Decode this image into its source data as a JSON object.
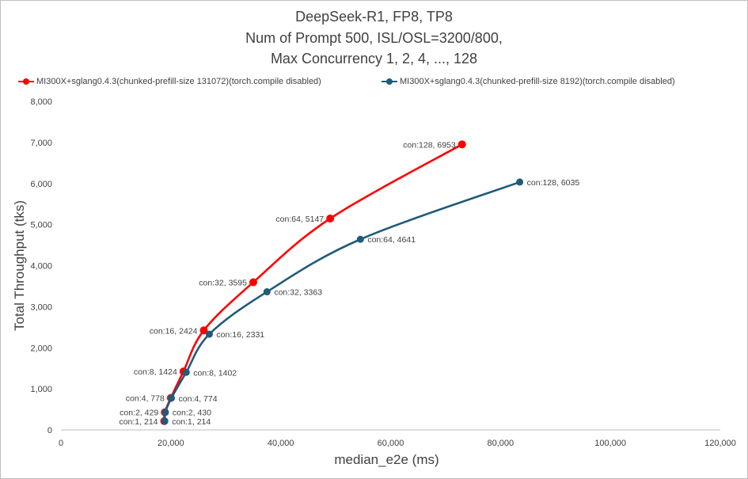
{
  "chart_data": {
    "type": "scatter",
    "title": [
      "DeepSeek-R1, FP8, TP8",
      "Num of Prompt 500, ISL/OSL=3200/800,",
      "Max Concurrency 1, 2, 4, ..., 128"
    ],
    "xlabel": "median_e2e (ms)",
    "ylabel": "Total Throughput (tks)",
    "xlim": [
      0,
      120000
    ],
    "ylim": [
      0,
      8000
    ],
    "xticks": [
      0,
      20000,
      40000,
      60000,
      80000,
      100000,
      120000
    ],
    "xtick_labels": [
      "0",
      "20,000",
      "40,000",
      "60,000",
      "80,000",
      "100,000",
      "120,000"
    ],
    "yticks": [
      0,
      1000,
      2000,
      3000,
      4000,
      5000,
      6000,
      7000,
      8000
    ],
    "ytick_labels": [
      "0",
      "1,000",
      "2,000",
      "3,000",
      "4,000",
      "5,000",
      "6,000",
      "7,000",
      "8,000"
    ],
    "grid": false,
    "legend_position": "top",
    "series": [
      {
        "name": "MI300X+sglang0.4.3(chunked-prefill-size 131072)(torch.compile disabled)",
        "color": "#ff0000",
        "x": [
          18800,
          18900,
          20000,
          22300,
          26000,
          35000,
          49000,
          73000
        ],
        "y": [
          214,
          429,
          778,
          1424,
          2424,
          3595,
          5147,
          6953
        ],
        "labels": [
          "con:1, 214",
          "con:2, 429",
          "con:4, 778",
          "con:8, 1424",
          "con:16, 2424",
          "con:32, 3595",
          "con:64, 5147",
          "con:128, 6953"
        ]
      },
      {
        "name": "MI300X+sglang0.4.3(chunked-prefill-size 8192)(torch.compile disabled)",
        "color": "#1f5c7a",
        "x": [
          18900,
          19000,
          20100,
          22800,
          27000,
          37500,
          54500,
          83500
        ],
        "y": [
          214,
          430,
          774,
          1402,
          2331,
          3363,
          4641,
          6035
        ],
        "labels": [
          "con:1, 214",
          "con:2, 430",
          "con:4, 774",
          "con:8, 1402",
          "con:16, 2331",
          "con:32, 3363",
          "con:64, 4641",
          "con:128, 6035"
        ]
      }
    ]
  },
  "colors": {
    "axis": "#bfbfbf",
    "text": "#404040",
    "label": "#404040"
  }
}
